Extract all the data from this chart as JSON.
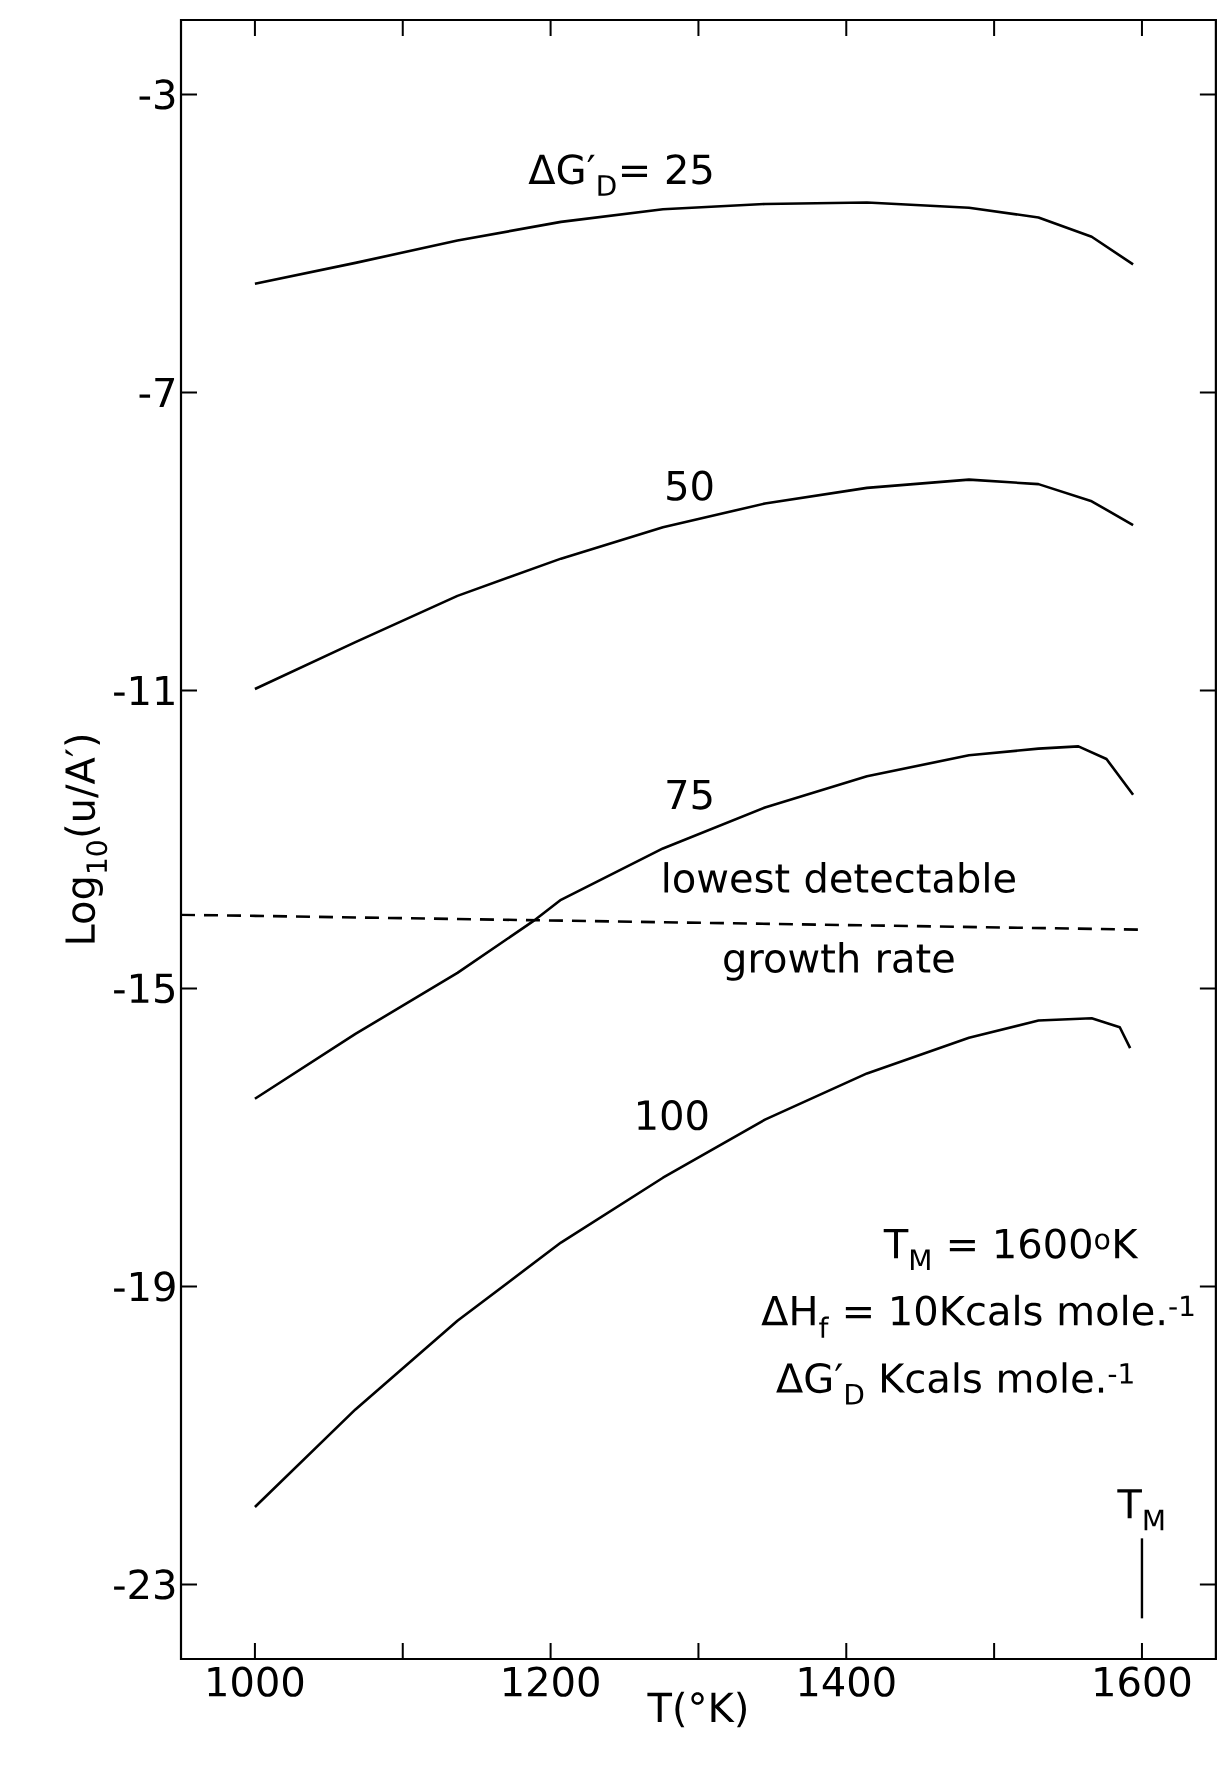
{
  "chart_data": {
    "type": "line",
    "xlabel": "T(°K)",
    "ylabel": "Log$_{10}$(u/A′)",
    "xlim": [
      950,
      1650
    ],
    "ylim": [
      -24,
      -2
    ],
    "xticks": [
      1000,
      {
        "value": 1100,
        "label": null
      },
      1200,
      {
        "value": 1300,
        "label": null
      },
      1400,
      {
        "value": 1500,
        "label": null
      },
      1600
    ],
    "yticks": [
      -3,
      -7,
      -11,
      -15,
      -19,
      -23
    ],
    "grid": false,
    "series": [
      {
        "name": "ΔG′$_{D}$= 25",
        "color": "#000000",
        "line_style": "solid",
        "x": [
          1000,
          1068,
          1137,
          1207,
          1276,
          1345,
          1414,
          1483,
          1530,
          1566,
          1594
        ],
        "values": [
          -5.54,
          -5.26,
          -4.96,
          -4.71,
          -4.54,
          -4.47,
          -4.45,
          -4.52,
          -4.65,
          -4.91,
          -5.28
        ]
      },
      {
        "name": "50",
        "color": "#000000",
        "line_style": "solid",
        "x": [
          1000,
          1068,
          1137,
          1207,
          1276,
          1345,
          1414,
          1483,
          1530,
          1566,
          1594
        ],
        "values": [
          -10.98,
          -10.35,
          -9.73,
          -9.23,
          -8.81,
          -8.49,
          -8.28,
          -8.17,
          -8.23,
          -8.46,
          -8.78
        ]
      },
      {
        "name": "75",
        "color": "#000000",
        "line_style": "solid",
        "x": [
          1000,
          1068,
          1137,
          1188,
          1207,
          1276,
          1345,
          1414,
          1483,
          1530,
          1557,
          1576,
          1594
        ],
        "values": [
          -16.48,
          -15.61,
          -14.79,
          -14.1,
          -13.81,
          -13.12,
          -12.57,
          -12.15,
          -11.87,
          -11.78,
          -11.75,
          -11.92,
          -12.4
        ]
      },
      {
        "name": "100",
        "color": "#000000",
        "line_style": "solid",
        "x": [
          1000,
          1068,
          1137,
          1207,
          1276,
          1345,
          1414,
          1483,
          1530,
          1566,
          1585,
          1592
        ],
        "values": [
          -21.96,
          -20.65,
          -19.46,
          -18.41,
          -17.54,
          -16.76,
          -16.14,
          -15.66,
          -15.43,
          -15.4,
          -15.52,
          -15.8
        ]
      },
      {
        "name": "lowest detectable growth rate",
        "color": "#000000",
        "line_style": "dashed",
        "x": [
          950,
          1600
        ],
        "values": [
          -14.01,
          -14.21
        ]
      }
    ],
    "annotations": [
      "T$_{M}$ = 1600$^{o}$K",
      "ΔH$_{f}$ = 10Kcals mole.$^{-1}$",
      "ΔG′$_{D}$ Kcals mole.$^{-1}$",
      "T$_{M}$"
    ]
  }
}
